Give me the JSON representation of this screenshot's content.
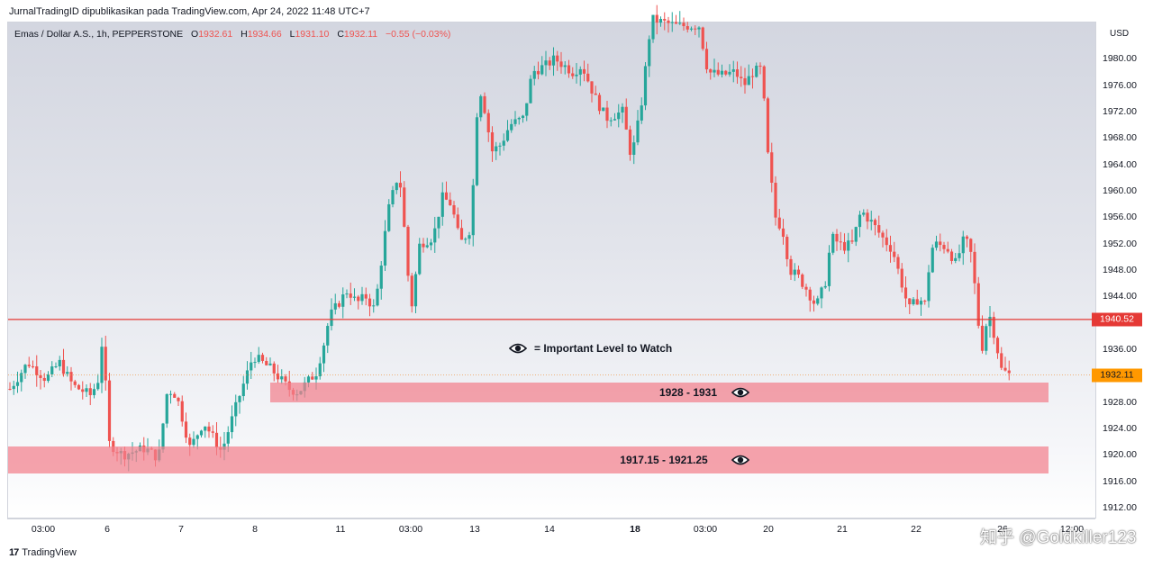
{
  "header": {
    "published": "JurnalTradingID dipublikasikan pada TradingView.com, Apr 24, 2022 11:48 UTC+7"
  },
  "legend": {
    "symbol": "Emas / Dollar A.S., 1h, PEPPERSTONE",
    "o_label": "O",
    "o": "1932.61",
    "h_label": "H",
    "h": "1934.66",
    "l_label": "L",
    "l": "1931.10",
    "c_label": "C",
    "c": "1932.11",
    "change": "−0.55 (−0.03%)"
  },
  "colors": {
    "up": "#26a69a",
    "down": "#ef5350",
    "level": "#e53935",
    "zone": "#f2808c"
  },
  "chart_data": {
    "type": "candlestick",
    "currency": "USD",
    "ylim": [
      1910.5,
      1985.5
    ],
    "y_ticks": [
      "1980.00",
      "1976.00",
      "1972.00",
      "1968.00",
      "1964.00",
      "1960.00",
      "1956.00",
      "1952.00",
      "1948.00",
      "1944.00",
      "1940.00",
      "1936.00",
      "1932.00",
      "1928.00",
      "1924.00",
      "1920.00",
      "1916.00",
      "1912.00"
    ],
    "x_ticks": [
      {
        "label": "03:00",
        "bold": false
      },
      {
        "label": "6",
        "bold": false
      },
      {
        "label": "7",
        "bold": false
      },
      {
        "label": "8",
        "bold": false
      },
      {
        "label": "11",
        "bold": false
      },
      {
        "label": "03:00",
        "bold": false
      },
      {
        "label": "13",
        "bold": false
      },
      {
        "label": "14",
        "bold": false
      },
      {
        "label": "18",
        "bold": true
      },
      {
        "label": "03:00",
        "bold": false
      },
      {
        "label": "20",
        "bold": false
      },
      {
        "label": "21",
        "bold": false
      },
      {
        "label": "22",
        "bold": false
      },
      {
        "label": "26",
        "bold": false
      },
      {
        "label": "12:00",
        "bold": false
      }
    ],
    "price_path": [
      [
        0,
        1930
      ],
      [
        20,
        1934
      ],
      [
        40,
        1931.5
      ],
      [
        55,
        1934
      ],
      [
        70,
        1930.5
      ],
      [
        90,
        1929
      ],
      [
        100,
        1932
      ],
      [
        104,
        1941.5
      ],
      [
        108,
        1922
      ],
      [
        125,
        1920
      ],
      [
        150,
        1921
      ],
      [
        165,
        1919.5
      ],
      [
        175,
        1930
      ],
      [
        185,
        1929
      ],
      [
        200,
        1921
      ],
      [
        215,
        1925
      ],
      [
        235,
        1920.5
      ],
      [
        255,
        1929
      ],
      [
        270,
        1935
      ],
      [
        290,
        1933
      ],
      [
        310,
        1930
      ],
      [
        320,
        1929.5
      ],
      [
        340,
        1932.5
      ],
      [
        348,
        1936.5
      ],
      [
        355,
        1941
      ],
      [
        375,
        1945
      ],
      [
        385,
        1943
      ],
      [
        395,
        1944
      ],
      [
        405,
        1942
      ],
      [
        420,
        1957
      ],
      [
        432,
        1963
      ],
      [
        440,
        1951
      ],
      [
        445,
        1941.5
      ],
      [
        455,
        1952
      ],
      [
        470,
        1953
      ],
      [
        480,
        1959
      ],
      [
        490,
        1958
      ],
      [
        500,
        1952
      ],
      [
        510,
        1954
      ],
      [
        515,
        1962
      ],
      [
        520,
        1976
      ],
      [
        525,
        1974
      ],
      [
        535,
        1966
      ],
      [
        545,
        1967
      ],
      [
        555,
        1970
      ],
      [
        570,
        1971
      ],
      [
        580,
        1978
      ],
      [
        595,
        1979
      ],
      [
        605,
        1980
      ],
      [
        625,
        1978
      ],
      [
        635,
        1979
      ],
      [
        650,
        1974
      ],
      [
        662,
        1971
      ],
      [
        680,
        1972
      ],
      [
        690,
        1965
      ],
      [
        700,
        1972
      ],
      [
        706,
        1979
      ],
      [
        712,
        1986
      ],
      [
        740,
        1985
      ],
      [
        765,
        1985
      ],
      [
        775,
        1978
      ],
      [
        790,
        1977.5
      ],
      [
        805,
        1978
      ],
      [
        815,
        1976
      ],
      [
        825,
        1978
      ],
      [
        835,
        1978.5
      ],
      [
        840,
        1967
      ],
      [
        850,
        1956
      ],
      [
        858,
        1954
      ],
      [
        866,
        1948
      ],
      [
        875,
        1947
      ],
      [
        885,
        1945
      ],
      [
        895,
        1942.5
      ],
      [
        905,
        1946
      ],
      [
        912,
        1953
      ],
      [
        925,
        1951.5
      ],
      [
        935,
        1952
      ],
      [
        945,
        1957
      ],
      [
        958,
        1955
      ],
      [
        968,
        1953
      ],
      [
        980,
        1951
      ],
      [
        990,
        1946
      ],
      [
        998,
        1942
      ],
      [
        1010,
        1944
      ],
      [
        1015,
        1942
      ],
      [
        1020,
        1948
      ],
      [
        1025,
        1952
      ],
      [
        1040,
        1951.5
      ],
      [
        1050,
        1949
      ],
      [
        1060,
        1953
      ],
      [
        1068,
        1950
      ],
      [
        1075,
        1940
      ],
      [
        1080,
        1936
      ],
      [
        1086,
        1942
      ],
      [
        1095,
        1937
      ],
      [
        1100,
        1933
      ],
      [
        1110,
        1932.11
      ]
    ],
    "last_price": "1932.11",
    "level_line": {
      "value": 1940.52,
      "label": "1940.52"
    },
    "current_label": "1932.11",
    "zones": [
      {
        "low": 1928,
        "high": 1931,
        "label": "1928 - 1931"
      },
      {
        "low": 1917.15,
        "high": 1921.25,
        "label": "1917.15 - 1921.25"
      }
    ],
    "annotation": "= Important Level to Watch"
  },
  "footer": {
    "brand": "TradingView",
    "brand_logo": "17",
    "watermark": "知乎 @Goldkiller123"
  }
}
